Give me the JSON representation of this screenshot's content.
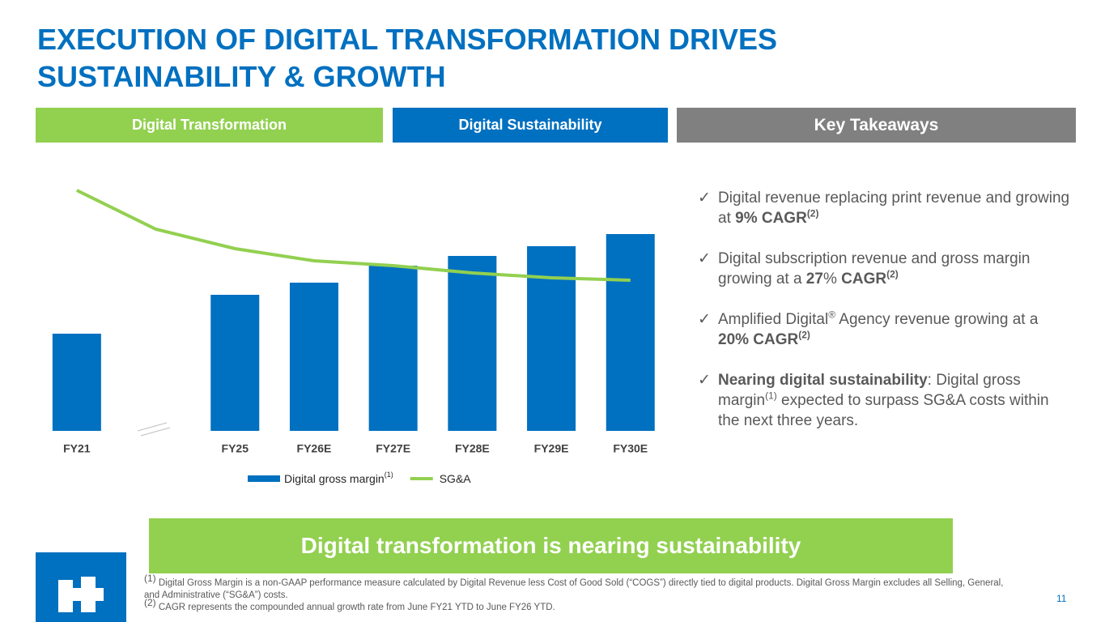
{
  "header": {
    "title_lines": [
      "EXECUTION OF DIGITAL TRANSFORMATION DRIVES",
      "SUSTAINABILITY & GROWTH"
    ]
  },
  "tabs": [
    "Digital Transformation",
    "Digital Sustainability",
    "Key Takeaways"
  ],
  "chart_data": {
    "type": "bar_line",
    "categories": [
      "FY21",
      null,
      "FY25",
      "FY26E",
      "FY27E",
      "FY28E",
      "FY29E",
      "FY30E"
    ],
    "series": [
      {
        "name": "Digital gross margin",
        "name_superscript": "(1)",
        "kind": "bar",
        "color": "#0070c0",
        "values": [
          40,
          null,
          56,
          61,
          68,
          72,
          76,
          81
        ]
      },
      {
        "name": "SG&A",
        "kind": "line",
        "color": "#92d050",
        "values": [
          99,
          83,
          75,
          70,
          68,
          65,
          63,
          62
        ]
      }
    ],
    "ylim": [
      0,
      100
    ],
    "grid": false,
    "legend": "bottom"
  },
  "takeaways": [
    [
      {
        "text": "Digital revenue replacing print revenue and growing at "
      },
      {
        "text": "9% CAGR",
        "bold": true
      },
      {
        "text": "(2)",
        "bold": true,
        "sup": true
      }
    ],
    [
      {
        "text": "Digital subscription revenue and gross margin growing at a "
      },
      {
        "text": "27",
        "bold": true
      },
      {
        "text": "% "
      },
      {
        "text": "CAGR",
        "bold": true
      },
      {
        "text": "(2)",
        "bold": true,
        "sup": true
      }
    ],
    [
      {
        "text": "Amplified Digital"
      },
      {
        "text": "®",
        "sup": true
      },
      {
        "text": " Agency revenue growing at a "
      },
      {
        "text": "20% CAGR",
        "bold": true
      },
      {
        "text": "(2)",
        "bold": true,
        "sup": true
      }
    ],
    [
      {
        "text": "Nearing digital sustainability",
        "bold": true
      },
      {
        "text": ": Digital gross margin"
      },
      {
        "text": "(1)",
        "sup": true
      },
      {
        "text": " expected to surpass SG&A costs within the next three years."
      }
    ]
  ],
  "banner": "Digital transformation is nearing sustainability",
  "footnotes": [
    [
      {
        "text": "(1)",
        "sup": true
      },
      {
        "text": " Digital Gross Margin is a non-GAAP performance measure calculated by Digital Revenue less Cost of Good Sold (“COGS”) directly tied to digital products. Digital Gross Margin excludes all Selling, General, and Administrative (“SG&A”) costs."
      }
    ],
    [
      {
        "text": "(2)",
        "sup": true
      },
      {
        "text": " CAGR represents the compounded annual growth rate from June FY21 YTD to June FY26 YTD."
      }
    ]
  ],
  "page_number": "11"
}
